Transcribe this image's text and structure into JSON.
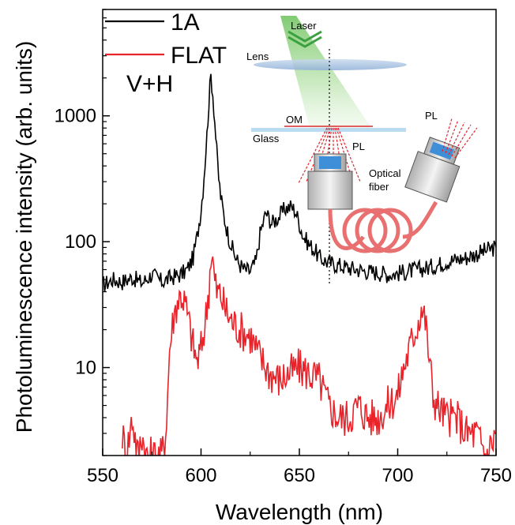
{
  "chart_data": {
    "type": "line",
    "title": "",
    "xlabel": "Wavelength (nm)",
    "ylabel": "Photoluminescence intensity (arb. units)",
    "xlim": [
      550,
      750
    ],
    "ylim": [
      2,
      7000
    ],
    "yscale": "log",
    "x_ticks": [
      "550",
      "600",
      "650",
      "700",
      "750"
    ],
    "y_ticks": [
      "10",
      "100",
      "1000"
    ],
    "legend_position": "top-left",
    "annotation": "V+H",
    "series": [
      {
        "name": "1A",
        "color": "#000000",
        "x": [
          550,
          555,
          560,
          565,
          570,
          575,
          580,
          585,
          590,
          593,
          596,
          598,
          600,
          601,
          602,
          603,
          604,
          605,
          606,
          607,
          608,
          609,
          610,
          612,
          614,
          616,
          618,
          620,
          622,
          625,
          628,
          630,
          633,
          636,
          640,
          643,
          646,
          648,
          650,
          652,
          655,
          658,
          660,
          665,
          670,
          675,
          680,
          685,
          690,
          695,
          700,
          705,
          710,
          715,
          720,
          725,
          730,
          735,
          740,
          745,
          750
        ],
        "values": [
          45,
          50,
          48,
          52,
          47,
          55,
          48,
          52,
          55,
          60,
          75,
          110,
          180,
          260,
          420,
          700,
          1300,
          2100,
          1500,
          900,
          520,
          320,
          230,
          150,
          110,
          88,
          72,
          65,
          60,
          58,
          70,
          115,
          170,
          140,
          160,
          185,
          190,
          175,
          140,
          110,
          95,
          85,
          75,
          68,
          65,
          62,
          60,
          58,
          57,
          55,
          56,
          58,
          60,
          62,
          65,
          70,
          72,
          75,
          80,
          85,
          90
        ]
      },
      {
        "name": "FLAT",
        "color": "#e8232a",
        "x": [
          560,
          562,
          565,
          568,
          570,
          572,
          575,
          578,
          580,
          582,
          583,
          584,
          586,
          588,
          590,
          592,
          594,
          596,
          598,
          600,
          602,
          604,
          605,
          606,
          607,
          608,
          610,
          612,
          615,
          620,
          625,
          630,
          635,
          640,
          645,
          650,
          655,
          660,
          665,
          670,
          675,
          680,
          685,
          690,
          695,
          700,
          703,
          706,
          708,
          710,
          712,
          714,
          716,
          718,
          720,
          725,
          730,
          735,
          740,
          745,
          750
        ],
        "values": [
          3,
          2,
          4,
          2,
          3,
          2,
          2,
          2,
          2,
          3,
          6,
          14,
          25,
          34,
          38,
          32,
          22,
          15,
          11,
          14,
          22,
          42,
          80,
          70,
          48,
          40,
          38,
          30,
          24,
          20,
          18,
          12,
          9,
          8,
          9,
          10,
          9,
          8,
          5,
          4,
          4,
          5,
          4,
          4,
          5,
          6,
          10,
          14,
          18,
          22,
          30,
          24,
          12,
          6,
          5,
          4,
          4,
          3,
          3,
          2,
          3
        ]
      }
    ],
    "inset_labels": {
      "laser": "Laser",
      "lens": "Lens",
      "om": "OM",
      "glass": "Glass",
      "pl_left": "PL",
      "pl_right": "PL",
      "fiber_line1": "Optical",
      "fiber_line2": "fiber"
    }
  }
}
